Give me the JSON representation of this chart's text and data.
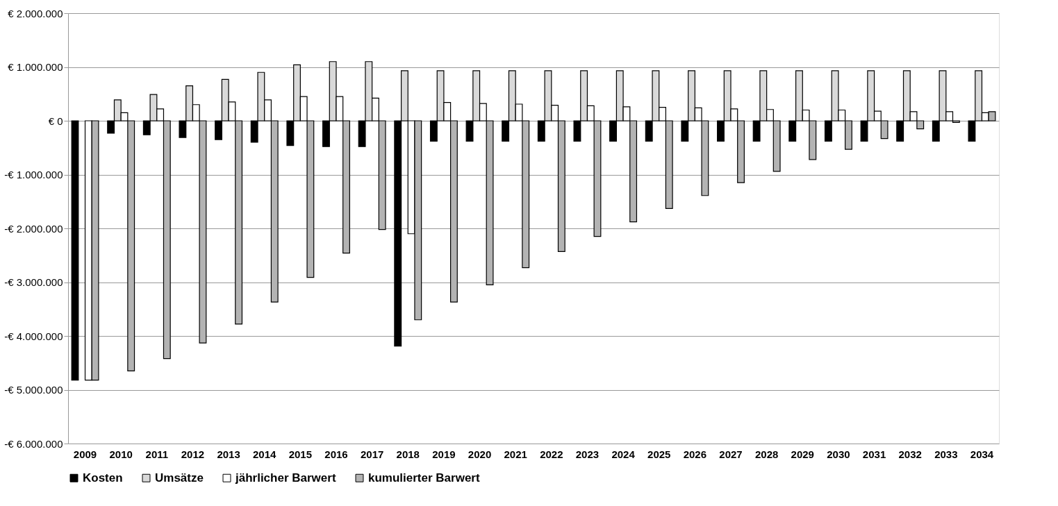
{
  "chart_data": {
    "type": "bar",
    "categories": [
      "2009",
      "2010",
      "2011",
      "2012",
      "2013",
      "2014",
      "2015",
      "2016",
      "2017",
      "2018",
      "2019",
      "2020",
      "2021",
      "2022",
      "2023",
      "2024",
      "2025",
      "2026",
      "2027",
      "2028",
      "2029",
      "2030",
      "2031",
      "2032",
      "2033",
      "2034"
    ],
    "series": [
      {
        "name": "Kosten",
        "color": "#000000",
        "values": [
          -4820000,
          -230000,
          -260000,
          -310000,
          -350000,
          -400000,
          -460000,
          -480000,
          -480000,
          -4190000,
          -380000,
          -380000,
          -380000,
          -380000,
          -380000,
          -380000,
          -380000,
          -380000,
          -380000,
          -380000,
          -380000,
          -380000,
          -380000,
          -380000,
          -380000,
          -380000
        ]
      },
      {
        "name": "Umsätze",
        "color": "#d9d9d9",
        "values": [
          null,
          390000,
          490000,
          650000,
          770000,
          900000,
          1040000,
          1100000,
          1100000,
          930000,
          930000,
          930000,
          930000,
          930000,
          930000,
          930000,
          930000,
          930000,
          930000,
          930000,
          930000,
          930000,
          930000,
          930000,
          930000,
          930000
        ]
      },
      {
        "name": "jährlicher Barwert",
        "color": "#ffffff",
        "values": [
          -4820000,
          150000,
          220000,
          300000,
          350000,
          390000,
          450000,
          450000,
          420000,
          -2100000,
          340000,
          320000,
          310000,
          290000,
          280000,
          260000,
          250000,
          240000,
          220000,
          210000,
          200000,
          200000,
          180000,
          170000,
          170000,
          150000
        ]
      },
      {
        "name": "kumulierter Barwert",
        "color": "#b3b3b3",
        "values": [
          -4820000,
          -4650000,
          -4420000,
          -4130000,
          -3780000,
          -3370000,
          -2910000,
          -2460000,
          -2020000,
          -3700000,
          -3370000,
          -3050000,
          -2730000,
          -2430000,
          -2150000,
          -1880000,
          -1630000,
          -1390000,
          -1150000,
          -940000,
          -720000,
          -530000,
          -330000,
          -150000,
          -30000,
          170000
        ]
      }
    ],
    "ylim": [
      -6000000,
      2000000
    ],
    "yticks": [
      {
        "value": -6000000,
        "label": "-€ 6.000.000"
      },
      {
        "value": -5000000,
        "label": "-€ 5.000.000"
      },
      {
        "value": -4000000,
        "label": "-€ 4.000.000"
      },
      {
        "value": -3000000,
        "label": "-€ 3.000.000"
      },
      {
        "value": -2000000,
        "label": "-€ 2.000.000"
      },
      {
        "value": -1000000,
        "label": "-€ 1.000.000"
      },
      {
        "value": 0,
        "label": "€ 0"
      },
      {
        "value": 1000000,
        "label": "€ 1.000.000"
      },
      {
        "value": 2000000,
        "label": "€ 2.000.000"
      }
    ],
    "grid": "y",
    "legend": "bottom"
  }
}
